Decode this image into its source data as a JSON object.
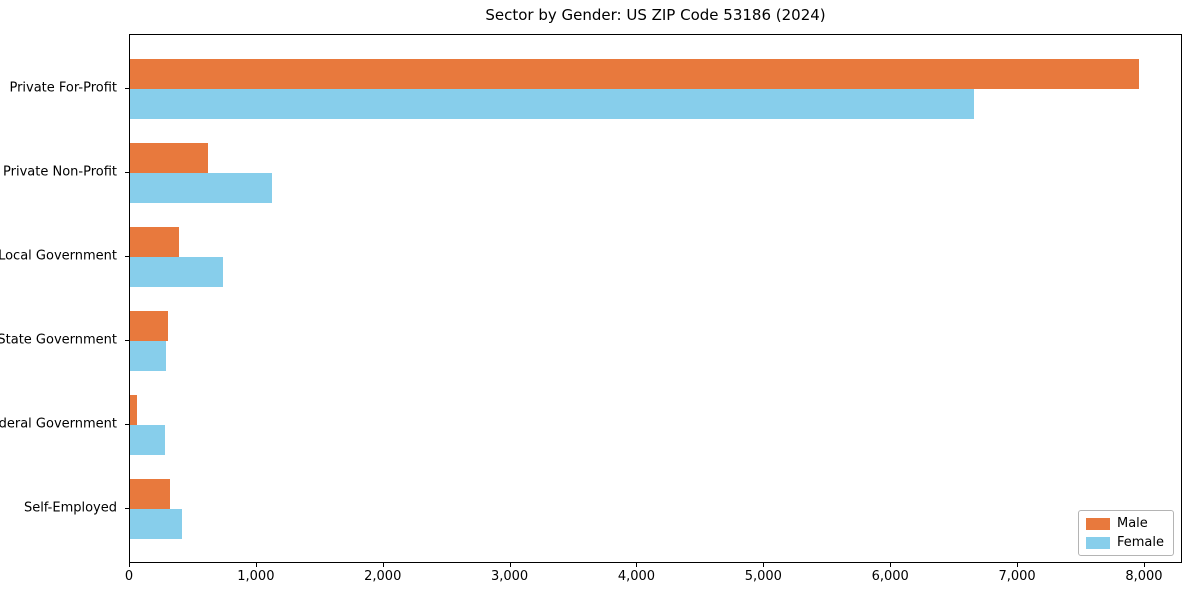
{
  "figure": {
    "background": "#ffffff"
  },
  "chart_data": {
    "type": "bar",
    "orientation": "horizontal",
    "title": "Sector by Gender: US ZIP Code 53186 (2024)",
    "xlabel": "",
    "ylabel": "",
    "categories": [
      "Private For-Profit",
      "Private Non-Profit",
      "Local Government",
      "State Government",
      "Federal Government",
      "Self-Employed"
    ],
    "series": [
      {
        "name": "Male",
        "color": "#e8793d",
        "values": [
          7950,
          615,
          385,
          300,
          55,
          315
        ]
      },
      {
        "name": "Female",
        "color": "#87ceeb",
        "values": [
          6650,
          1120,
          730,
          285,
          275,
          410
        ]
      }
    ],
    "xlim": [
      0,
      8300
    ],
    "xticks": [
      0,
      1000,
      2000,
      3000,
      4000,
      5000,
      6000,
      7000,
      8000
    ],
    "xtick_labels": [
      "0",
      "1,000",
      "2,000",
      "3,000",
      "4,000",
      "5,000",
      "6,000",
      "7,000",
      "8,000"
    ],
    "grid": false,
    "legend": {
      "position": "lower right",
      "entries": [
        "Male",
        "Female"
      ]
    }
  }
}
